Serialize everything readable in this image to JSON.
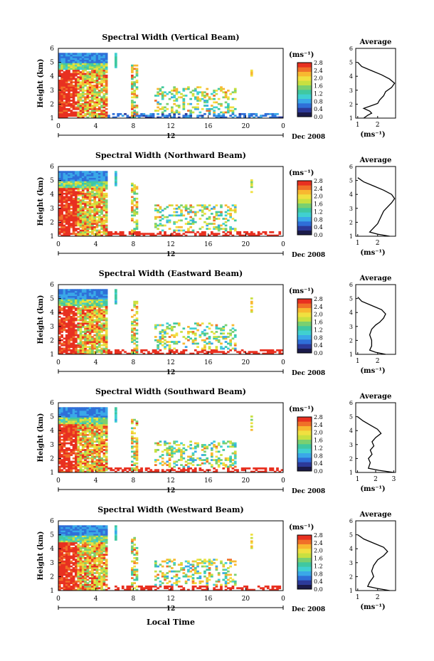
{
  "figure": {
    "xlabel": "Local Time",
    "date_label": "Dec 2008",
    "day_label": "12",
    "units_label": "(ms⁻¹)",
    "avg_units_label": "(ms⁻¹)",
    "avg_title": "Average",
    "ylabel": "Height (km)",
    "colors": [
      "#1b1b4a",
      "#2c3a9a",
      "#2f6fd8",
      "#3aa8e8",
      "#40d0d0",
      "#40c8a0",
      "#7ad070",
      "#c8e040",
      "#f0e040",
      "#f8b830",
      "#f07028",
      "#e83020"
    ]
  },
  "chart_data": [
    {
      "type": "heatmap",
      "title": "Spectral Width (Vertical Beam)",
      "ylabel": "Height (km)",
      "xlabel": "Local Time",
      "x_ticks": [
        "0",
        "4",
        "8",
        "12",
        "16",
        "20",
        "0"
      ],
      "y_ticks": [
        "1",
        "2",
        "3",
        "4",
        "5",
        "6"
      ],
      "xlim": [
        0,
        24
      ],
      "ylim": [
        1,
        6
      ],
      "colorbar": {
        "min": 0.0,
        "max": 2.8,
        "ticks": [
          "0.0",
          "0.4",
          "0.8",
          "1.2",
          "1.6",
          "2.0",
          "2.4",
          "2.8"
        ]
      },
      "profile": {
        "title": "Average",
        "xlabel": "(ms⁻¹)",
        "x_ticks": [
          "1",
          "2"
        ],
        "xlim": [
          0.9,
          2.9
        ],
        "points": [
          [
            1.3,
            1.0
          ],
          [
            1.5,
            1.2
          ],
          [
            1.7,
            1.35
          ],
          [
            1.6,
            1.5
          ],
          [
            1.3,
            1.7
          ],
          [
            1.7,
            1.9
          ],
          [
            2.0,
            2.05
          ],
          [
            2.1,
            2.3
          ],
          [
            2.3,
            2.6
          ],
          [
            2.4,
            2.9
          ],
          [
            2.7,
            3.2
          ],
          [
            2.85,
            3.5
          ],
          [
            2.6,
            3.8
          ],
          [
            2.2,
            4.1
          ],
          [
            1.7,
            4.4
          ],
          [
            1.2,
            4.7
          ],
          [
            1.0,
            5.0
          ]
        ]
      }
    },
    {
      "type": "heatmap",
      "title": "Spectral Width (Northward Beam)",
      "ylabel": "Height (km)",
      "xlabel": "Local Time",
      "x_ticks": [
        "0",
        "4",
        "8",
        "12",
        "16",
        "20",
        "0"
      ],
      "y_ticks": [
        "1",
        "2",
        "3",
        "4",
        "5",
        "6"
      ],
      "xlim": [
        0,
        24
      ],
      "ylim": [
        1,
        6
      ],
      "colorbar": {
        "min": 0.0,
        "max": 2.8,
        "ticks": [
          "0.0",
          "0.4",
          "0.8",
          "1.2",
          "1.6",
          "2.0",
          "2.4",
          "2.8"
        ]
      },
      "profile": {
        "title": "Average",
        "xlabel": "(ms⁻¹)",
        "x_ticks": [
          "1",
          "2"
        ],
        "xlim": [
          0.9,
          2.9
        ],
        "points": [
          [
            2.6,
            1.0
          ],
          [
            2.0,
            1.15
          ],
          [
            1.6,
            1.3
          ],
          [
            1.8,
            1.6
          ],
          [
            2.0,
            1.9
          ],
          [
            2.1,
            2.2
          ],
          [
            2.2,
            2.5
          ],
          [
            2.3,
            2.8
          ],
          [
            2.5,
            3.1
          ],
          [
            2.7,
            3.4
          ],
          [
            2.85,
            3.7
          ],
          [
            2.7,
            4.0
          ],
          [
            2.3,
            4.3
          ],
          [
            1.8,
            4.6
          ],
          [
            1.3,
            4.9
          ],
          [
            1.0,
            5.2
          ]
        ]
      }
    },
    {
      "type": "heatmap",
      "title": "Spectral Width (Eastward Beam)",
      "ylabel": "Height (km)",
      "xlabel": "Local Time",
      "x_ticks": [
        "0",
        "4",
        "8",
        "12",
        "16",
        "20",
        "0"
      ],
      "y_ticks": [
        "1",
        "2",
        "3",
        "4",
        "5",
        "6"
      ],
      "xlim": [
        0,
        24
      ],
      "ylim": [
        1,
        6
      ],
      "colorbar": {
        "min": 0.0,
        "max": 2.8,
        "ticks": [
          "0.0",
          "0.4",
          "0.8",
          "1.2",
          "1.6",
          "2.0",
          "2.4",
          "2.8"
        ]
      },
      "profile": {
        "title": "Average",
        "xlabel": "(ms⁻¹)",
        "x_ticks": [
          "1",
          "2"
        ],
        "xlim": [
          0.9,
          2.9
        ],
        "points": [
          [
            2.4,
            1.0
          ],
          [
            1.9,
            1.15
          ],
          [
            1.6,
            1.3
          ],
          [
            1.7,
            1.6
          ],
          [
            1.7,
            2.0
          ],
          [
            1.6,
            2.4
          ],
          [
            1.7,
            2.8
          ],
          [
            1.9,
            3.1
          ],
          [
            2.1,
            3.3
          ],
          [
            2.3,
            3.6
          ],
          [
            2.4,
            3.9
          ],
          [
            2.2,
            4.2
          ],
          [
            1.7,
            4.5
          ],
          [
            1.2,
            4.8
          ],
          [
            1.0,
            5.1
          ]
        ]
      }
    },
    {
      "type": "heatmap",
      "title": "Spectral Width (Southward Beam)",
      "ylabel": "Height (km)",
      "xlabel": "Local Time",
      "x_ticks": [
        "0",
        "4",
        "8",
        "12",
        "16",
        "20",
        "0"
      ],
      "y_ticks": [
        "1",
        "2",
        "3",
        "4",
        "5",
        "6"
      ],
      "xlim": [
        0,
        24
      ],
      "ylim": [
        1,
        6
      ],
      "colorbar": {
        "min": 0.0,
        "max": 2.8,
        "ticks": [
          "0.0",
          "0.4",
          "0.8",
          "1.2",
          "1.6",
          "2.0",
          "2.4",
          "2.8"
        ]
      },
      "profile": {
        "title": "Average",
        "xlabel": "(ms⁻¹)",
        "x_ticks": [
          "1",
          "2",
          "3"
        ],
        "xlim": [
          0.9,
          3.1
        ],
        "points": [
          [
            3.0,
            1.0
          ],
          [
            2.2,
            1.15
          ],
          [
            1.6,
            1.3
          ],
          [
            1.7,
            1.7
          ],
          [
            1.6,
            2.0
          ],
          [
            1.8,
            2.3
          ],
          [
            1.7,
            2.6
          ],
          [
            1.9,
            2.9
          ],
          [
            1.8,
            3.2
          ],
          [
            2.0,
            3.5
          ],
          [
            2.3,
            3.8
          ],
          [
            2.1,
            4.1
          ],
          [
            1.7,
            4.4
          ],
          [
            1.3,
            4.7
          ],
          [
            1.0,
            5.0
          ]
        ]
      }
    },
    {
      "type": "heatmap",
      "title": "Spectral Width (Westward Beam)",
      "ylabel": "Height (km)",
      "xlabel": "Local Time",
      "x_ticks": [
        "0",
        "4",
        "8",
        "12",
        "16",
        "20",
        "0"
      ],
      "y_ticks": [
        "1",
        "2",
        "3",
        "4",
        "5",
        "6"
      ],
      "xlim": [
        0,
        24
      ],
      "ylim": [
        1,
        6
      ],
      "colorbar": {
        "min": 0.0,
        "max": 2.8,
        "ticks": [
          "0.0",
          "0.4",
          "0.8",
          "1.2",
          "1.6",
          "2.0",
          "2.4",
          "2.8"
        ]
      },
      "profile": {
        "title": "Average",
        "xlabel": "(ms⁻¹)",
        "x_ticks": [
          "1",
          "2"
        ],
        "xlim": [
          0.9,
          2.9
        ],
        "points": [
          [
            2.6,
            1.0
          ],
          [
            2.0,
            1.15
          ],
          [
            1.5,
            1.3
          ],
          [
            1.6,
            1.6
          ],
          [
            1.8,
            2.0
          ],
          [
            1.7,
            2.4
          ],
          [
            1.8,
            2.8
          ],
          [
            2.0,
            3.2
          ],
          [
            2.3,
            3.5
          ],
          [
            2.5,
            3.8
          ],
          [
            2.3,
            4.1
          ],
          [
            1.8,
            4.4
          ],
          [
            1.3,
            4.7
          ],
          [
            1.0,
            5.0
          ]
        ]
      }
    }
  ]
}
